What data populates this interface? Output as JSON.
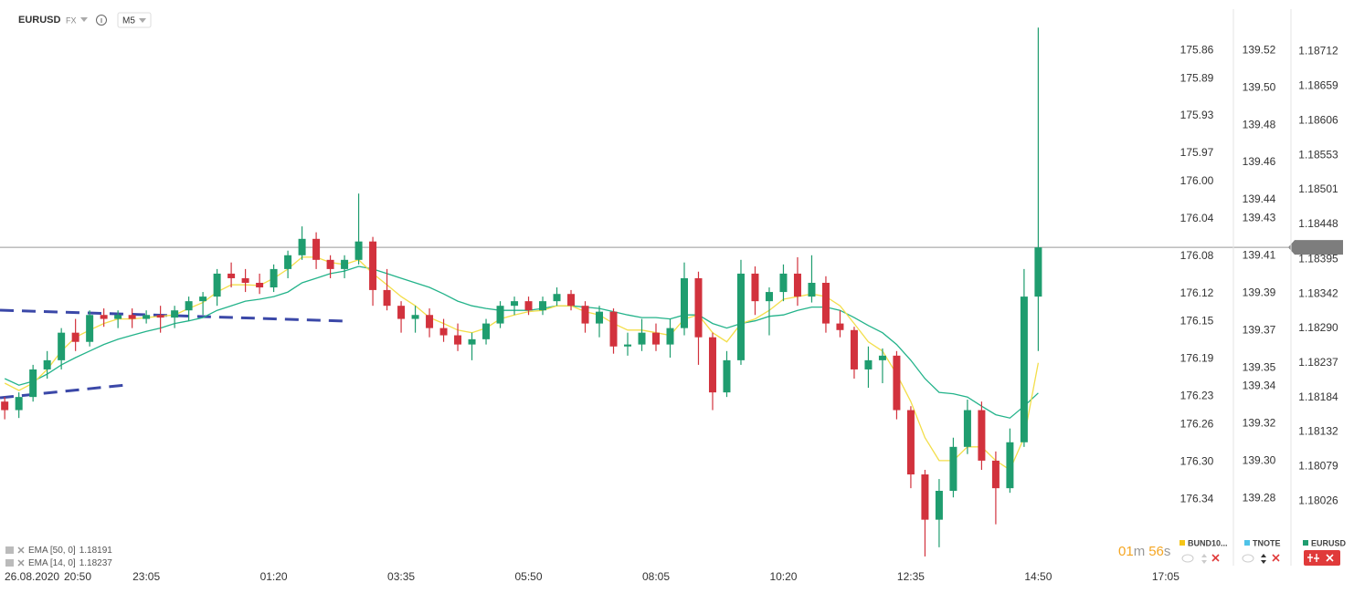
{
  "header": {
    "symbol": "EURUSD",
    "market": "FX",
    "interval": "M5"
  },
  "chart_data": {
    "type": "candlestick",
    "x_date": "26.08.2020",
    "x": [
      "20:35",
      "20:50",
      "21:05",
      "21:20",
      "21:35",
      "21:50",
      "22:05",
      "22:20",
      "22:35",
      "22:50",
      "23:05",
      "23:20",
      "23:35",
      "23:50",
      "00:05",
      "00:20",
      "00:35",
      "00:50",
      "01:05",
      "01:20",
      "01:35",
      "01:50",
      "02:05",
      "02:20",
      "02:35",
      "02:50",
      "03:05",
      "03:20",
      "03:35",
      "03:50",
      "04:05",
      "04:20",
      "04:35",
      "04:50",
      "05:05",
      "05:20",
      "05:35",
      "05:50",
      "06:05",
      "06:20",
      "06:35",
      "06:50",
      "07:05",
      "07:20",
      "07:35",
      "07:50",
      "08:05",
      "08:20",
      "08:35",
      "08:50",
      "09:05",
      "09:20",
      "09:35",
      "09:50",
      "10:05",
      "10:20",
      "10:35",
      "10:50",
      "11:05",
      "11:20",
      "11:35",
      "11:50",
      "12:05",
      "12:20",
      "12:35",
      "12:50",
      "13:05",
      "13:20",
      "13:35",
      "13:50",
      "14:05",
      "14:20",
      "14:35",
      "14:50"
    ],
    "open": [
      1.18178,
      1.18165,
      1.18185,
      1.18227,
      1.18241,
      1.18283,
      1.18269,
      1.1831,
      1.18304,
      1.1831,
      1.18304,
      1.1831,
      1.18306,
      1.18317,
      1.18331,
      1.18338,
      1.18373,
      1.18366,
      1.18359,
      1.18352,
      1.1838,
      1.18401,
      1.18426,
      1.18394,
      1.1838,
      1.18394,
      1.18422,
      1.18348,
      1.18324,
      1.18304,
      1.1831,
      1.1829,
      1.18279,
      1.18265,
      1.18273,
      1.18297,
      1.18324,
      1.18331,
      1.18317,
      1.18331,
      1.18342,
      1.18324,
      1.18297,
      1.18315,
      1.18262,
      1.18265,
      1.18283,
      1.18265,
      1.1829,
      1.18366,
      1.18276,
      1.18192,
      1.18241,
      1.18373,
      1.18331,
      1.18345,
      1.18373,
      1.18338,
      1.18359,
      1.18297,
      1.18287,
      1.18227,
      1.18241,
      1.18248,
      1.18165,
      1.18067,
      1.17998,
      1.18042,
      1.18109,
      1.18165,
      1.18088,
      1.18046,
      1.18116,
      1.18338
    ],
    "high": [
      1.18185,
      1.18192,
      1.18234,
      1.18255,
      1.1829,
      1.18304,
      1.18317,
      1.1832,
      1.18317,
      1.1832,
      1.18317,
      1.18324,
      1.18324,
      1.18338,
      1.18345,
      1.1838,
      1.1839,
      1.1838,
      1.18373,
      1.18387,
      1.18408,
      1.18445,
      1.18436,
      1.18401,
      1.18401,
      1.18495,
      1.18429,
      1.1838,
      1.18331,
      1.18324,
      1.1832,
      1.18304,
      1.18297,
      1.18283,
      1.18304,
      1.18331,
      1.18338,
      1.18338,
      1.18338,
      1.18352,
      1.18348,
      1.18331,
      1.18324,
      1.1832,
      1.18283,
      1.18304,
      1.18297,
      1.18304,
      1.1839,
      1.18376,
      1.18283,
      1.18255,
      1.18394,
      1.18384,
      1.18352,
      1.18387,
      1.18398,
      1.18401,
      1.18369,
      1.18317,
      1.18292,
      1.18262,
      1.18259,
      1.18255,
      1.18171,
      1.18074,
      1.1806,
      1.18123,
      1.18181,
      1.18178,
      1.18102,
      1.18137,
      1.1838,
      1.18748
    ],
    "low": [
      1.18151,
      1.18153,
      1.18178,
      1.18213,
      1.18227,
      1.18255,
      1.18262,
      1.18292,
      1.1829,
      1.1829,
      1.18297,
      1.18283,
      1.1829,
      1.18301,
      1.1831,
      1.18324,
      1.18352,
      1.18345,
      1.18342,
      1.18345,
      1.18366,
      1.18394,
      1.1838,
      1.18366,
      1.18366,
      1.18387,
      1.18324,
      1.18317,
      1.18283,
      1.18283,
      1.18276,
      1.18269,
      1.18255,
      1.18241,
      1.18265,
      1.1829,
      1.1831,
      1.1831,
      1.1831,
      1.18324,
      1.18317,
      1.18283,
      1.18276,
      1.18251,
      1.18248,
      1.18255,
      1.18255,
      1.18245,
      1.18279,
      1.18234,
      1.18165,
      1.18185,
      1.18234,
      1.1831,
      1.18279,
      1.18331,
      1.18324,
      1.18329,
      1.18283,
      1.18276,
      1.18213,
      1.18199,
      1.18206,
      1.18151,
      1.18046,
      1.17942,
      1.17956,
      1.18032,
      1.18098,
      1.18074,
      1.17991,
      1.18039,
      1.18109,
      1.18255
    ],
    "close": [
      1.18165,
      1.18185,
      1.18227,
      1.18241,
      1.18283,
      1.18269,
      1.1831,
      1.18304,
      1.1831,
      1.18304,
      1.1831,
      1.18306,
      1.18317,
      1.18331,
      1.18338,
      1.18373,
      1.18366,
      1.18359,
      1.18352,
      1.1838,
      1.18401,
      1.18426,
      1.18394,
      1.1838,
      1.18394,
      1.18422,
      1.18348,
      1.18324,
      1.18304,
      1.1831,
      1.1829,
      1.18279,
      1.18265,
      1.18273,
      1.18297,
      1.18324,
      1.18331,
      1.18317,
      1.18331,
      1.18342,
      1.18324,
      1.18297,
      1.18315,
      1.18262,
      1.18265,
      1.18283,
      1.18265,
      1.1829,
      1.18366,
      1.18276,
      1.18192,
      1.18241,
      1.18373,
      1.18331,
      1.18345,
      1.18373,
      1.18338,
      1.18359,
      1.18297,
      1.18287,
      1.18227,
      1.18241,
      1.18248,
      1.18165,
      1.18067,
      1.17998,
      1.18042,
      1.18109,
      1.18165,
      1.18088,
      1.18046,
      1.18116,
      1.18338,
      1.18413
    ],
    "up_color": "#1f9d6f",
    "down_color": "#d2323d",
    "series": [
      {
        "name": "EMA [50, 0]",
        "color": "#23b38a",
        "values": [
          1.18213,
          1.18203,
          1.18209,
          1.1822,
          1.18234,
          1.18245,
          1.18255,
          1.18265,
          1.18273,
          1.18279,
          1.18285,
          1.1829,
          1.18297,
          1.18301,
          1.18306,
          1.18317,
          1.18324,
          1.18331,
          1.18334,
          1.18338,
          1.18345,
          1.18359,
          1.18366,
          1.18373,
          1.18377,
          1.18384,
          1.1838,
          1.18373,
          1.18366,
          1.18359,
          1.18352,
          1.18342,
          1.18331,
          1.18324,
          1.1832,
          1.18317,
          1.18317,
          1.18317,
          1.1832,
          1.18324,
          1.18324,
          1.18322,
          1.1832,
          1.18315,
          1.1831,
          1.18306,
          1.18306,
          1.18304,
          1.1831,
          1.1831,
          1.18297,
          1.1829,
          1.18297,
          1.18301,
          1.18308,
          1.1831,
          1.18317,
          1.18322,
          1.18322,
          1.18317,
          1.18306,
          1.18294,
          1.18283,
          1.18265,
          1.18241,
          1.18213,
          1.18192,
          1.1819,
          1.18185,
          1.18171,
          1.18158,
          1.18153,
          1.18171,
          1.18191
        ]
      },
      {
        "name": "EMA [14, 0]",
        "color": "#f3de4a",
        "values": [
          1.18206,
          1.18195,
          1.18206,
          1.18227,
          1.18255,
          1.18276,
          1.18287,
          1.18297,
          1.18304,
          1.18304,
          1.18306,
          1.18308,
          1.1831,
          1.1832,
          1.18329,
          1.18345,
          1.18356,
          1.18356,
          1.18355,
          1.18366,
          1.1838,
          1.18398,
          1.18398,
          1.1839,
          1.18387,
          1.18394,
          1.18373,
          1.18356,
          1.18338,
          1.18324,
          1.18306,
          1.18297,
          1.18287,
          1.18283,
          1.1829,
          1.18304,
          1.1831,
          1.18315,
          1.18317,
          1.18324,
          1.18324,
          1.18315,
          1.1831,
          1.18297,
          1.18287,
          1.18287,
          1.18283,
          1.18279,
          1.18304,
          1.1831,
          1.18283,
          1.18269,
          1.18297,
          1.18304,
          1.18317,
          1.18334,
          1.18338,
          1.18342,
          1.18338,
          1.18324,
          1.18297,
          1.18269,
          1.18255,
          1.1822,
          1.18178,
          1.18123,
          1.18088,
          1.18088,
          1.18109,
          1.18109,
          1.18088,
          1.18074,
          1.18123,
          1.18237
        ]
      }
    ],
    "xlim": [
      "20:30",
      "17:09"
    ],
    "xticks": [
      "20:50",
      "23:05",
      "01:20",
      "03:35",
      "05:50",
      "08:05",
      "10:20",
      "12:35",
      "14:50",
      "17:05"
    ],
    "ylim": [
      1.17928,
      1.1879
    ],
    "yticks": [
      1.18712,
      1.18659,
      1.18606,
      1.18553,
      1.18501,
      1.18448,
      1.18395,
      1.18342,
      {
        "value": 1.1829,
        "label": "1.18290"
      },
      1.18237,
      1.18184,
      1.18132,
      1.18079,
      1.18026
    ],
    "y2lim": [
      176.411,
      175.806
    ],
    "y2ticks": [
      175.86,
      175.89,
      175.93,
      175.97,
      {
        "value": 176,
        "label": "176.00"
      },
      176.04,
      176.08,
      176.12,
      176.15,
      176.19,
      176.23,
      176.26,
      {
        "value": 176.3,
        "label": "176.30"
      },
      176.34
    ],
    "y3lim": [
      139.244,
      139.547
    ],
    "y3ticks": [
      139.52,
      {
        "value": 139.5,
        "label": "139.50"
      },
      139.48,
      139.46,
      139.44,
      139.43,
      139.41,
      139.39,
      139.37,
      139.35,
      139.34,
      139.32,
      {
        "value": 139.3,
        "label": "139.30"
      },
      139.28
    ],
    "grid": false,
    "instruments": [
      {
        "name": "BUND10...",
        "color": "#f5c518"
      },
      {
        "name": "TNOTE",
        "color": "#4fc3e8"
      },
      {
        "name": "EURUSD",
        "color": "#1f9d6f"
      }
    ]
  },
  "countdown": {
    "minutes": "01",
    "minutes_unit": "m",
    "seconds": "56",
    "seconds_unit": "s"
  }
}
